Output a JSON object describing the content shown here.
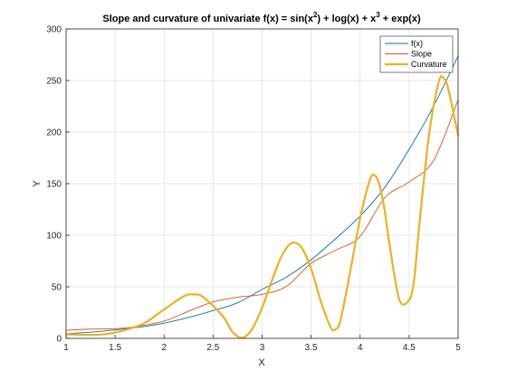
{
  "chart_data": {
    "type": "line",
    "title_parts": {
      "a": "Slope and curvature of univariate f(x) = sin(x",
      "sup1": "2",
      "b": ") + log(x) + x",
      "sup2": "3",
      "c": " + exp(x)"
    },
    "xlabel": "X",
    "ylabel": "Y",
    "xlim": [
      1,
      5
    ],
    "ylim": [
      0,
      300
    ],
    "xticks": [
      "1",
      "1.5",
      "2",
      "2.5",
      "3",
      "3.5",
      "4",
      "4.5",
      "5"
    ],
    "yticks": [
      "0",
      "50",
      "100",
      "150",
      "200",
      "250",
      "300"
    ],
    "grid": true,
    "legend_position": "top-right",
    "series": [
      {
        "name": "f(x)",
        "color": "#0072BD",
        "x": [
          1,
          1.25,
          1.5,
          1.75,
          2,
          2.25,
          2.5,
          2.75,
          3,
          3.25,
          3.5,
          3.75,
          4,
          4.25,
          4.5,
          4.75,
          5
        ],
        "y": [
          4.56,
          6.0,
          8.2,
          10.9,
          14.8,
          20.3,
          26.9,
          34.5,
          47.5,
          59.5,
          76.2,
          96.6,
          118.6,
          146.1,
          183.2,
          225.2,
          273.9
        ]
      },
      {
        "name": "Slope",
        "color": "#D95319",
        "x": [
          1,
          1.25,
          1.5,
          1.75,
          2,
          2.25,
          2.5,
          2.75,
          3,
          3.25,
          3.5,
          3.75,
          4,
          4.25,
          4.5,
          4.75,
          5
        ],
        "y": [
          7.8,
          9.0,
          9.4,
          11.9,
          16.8,
          26.3,
          35.4,
          39.9,
          42.7,
          50.5,
          72.8,
          85.4,
          98.9,
          136.3,
          151.7,
          172.6,
          231.2
        ]
      },
      {
        "name": "Curvature",
        "color": "#EDB120",
        "x": [
          1,
          1.2,
          1.4,
          1.6,
          1.8,
          2.0,
          2.2,
          2.3,
          2.4,
          2.6,
          2.7,
          2.8,
          2.9,
          3.0,
          3.1,
          3.2,
          3.3,
          3.4,
          3.5,
          3.6,
          3.7,
          3.75,
          3.8,
          3.9,
          4.0,
          4.1,
          4.15,
          4.2,
          4.25,
          4.3,
          4.4,
          4.5,
          4.55,
          4.6,
          4.7,
          4.8,
          4.85,
          4.9,
          5.0
        ],
        "y": [
          4.0,
          3.4,
          4.1,
          8.0,
          14.8,
          28.0,
          40.8,
          42.6,
          40.0,
          21.5,
          6.0,
          0.6,
          9.4,
          29.8,
          56.1,
          79.9,
          92.3,
          88.3,
          67.5,
          35.6,
          10.7,
          9.0,
          17.6,
          65.2,
          116.3,
          153.6,
          158.0,
          148.0,
          124.4,
          91.3,
          37.6,
          37.2,
          56.0,
          105.8,
          195.0,
          247.8,
          252.6,
          241.6,
          196.7
        ]
      }
    ]
  }
}
